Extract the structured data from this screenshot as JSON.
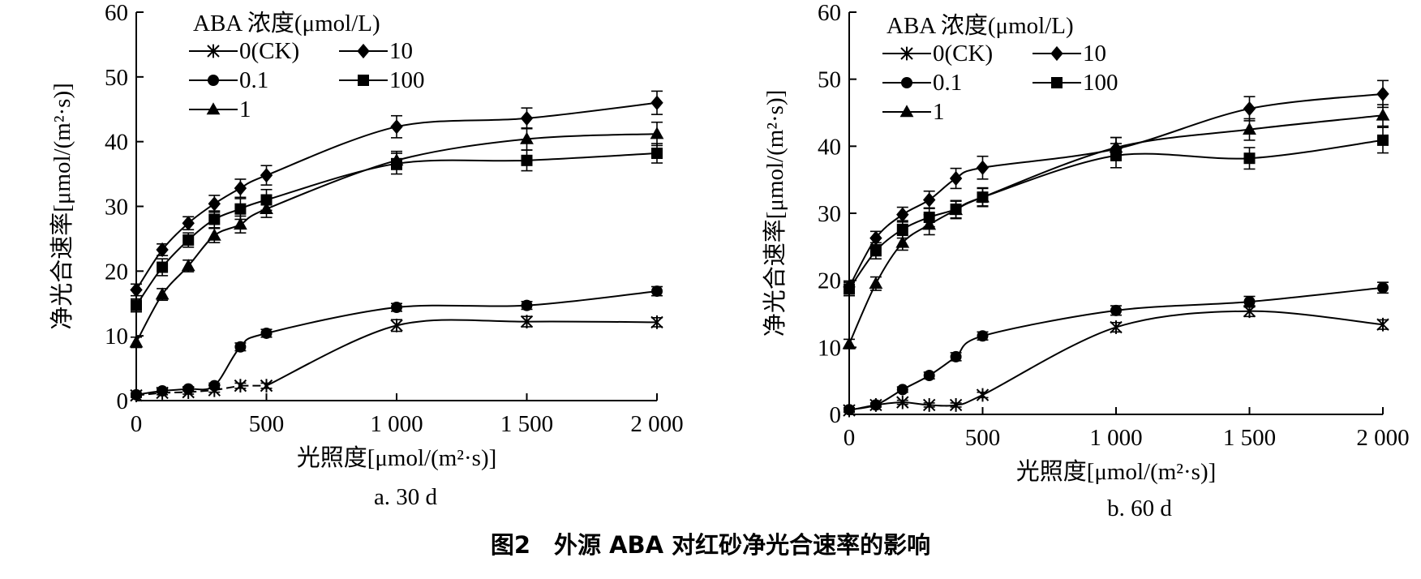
{
  "figure_caption": "图2　外源 ABA 对红砂净光合速率的影响",
  "chart_data": [
    {
      "type": "line",
      "caption": "a. 30 d",
      "xlabel": "光照度[μmol/(m²·s)]",
      "ylabel": "净光合速率[μmol/(m²·s)]",
      "xlim": [
        0,
        2000
      ],
      "ylim": [
        0,
        60
      ],
      "xticks": [
        0,
        500,
        1000,
        1500,
        2000
      ],
      "xtick_labels": [
        "0",
        "500",
        "1 000",
        "1 500",
        "2 000"
      ],
      "yticks": [
        0,
        10,
        20,
        30,
        40,
        50,
        60
      ],
      "ytick_labels": [
        "0",
        "10",
        "20",
        "30",
        "40",
        "50",
        "60"
      ],
      "grid": false,
      "legend_title": "ABA 浓度(μmol/L)",
      "legend_position": "top-left",
      "x": [
        0,
        100,
        200,
        300,
        400,
        500,
        1000,
        1500,
        2000
      ],
      "series": [
        {
          "name": "0(CK)",
          "marker": "asterisk",
          "dashed_segments": [
            0,
            1,
            2,
            3,
            4
          ],
          "values": [
            0.8,
            1.2,
            1.3,
            1.6,
            2.3,
            2.3,
            11.6,
            12.2,
            12.1
          ],
          "errors": [
            0.3,
            0.3,
            0.3,
            0.3,
            0.4,
            0.4,
            0.9,
            0.8,
            0.7
          ]
        },
        {
          "name": "0.1",
          "marker": "circle",
          "values": [
            0.9,
            1.5,
            1.8,
            2.3,
            8.3,
            10.4,
            14.4,
            14.7,
            16.9
          ],
          "errors": [
            0.3,
            0.3,
            0.3,
            0.4,
            0.6,
            0.6,
            0.6,
            0.6,
            0.7
          ]
        },
        {
          "name": "1",
          "marker": "triangle",
          "values": [
            9.0,
            16.4,
            20.8,
            25.5,
            27.2,
            29.6,
            37.1,
            40.4,
            41.2
          ],
          "errors": [
            0.8,
            0.9,
            0.9,
            1.1,
            1.3,
            1.3,
            1.4,
            1.7,
            1.8
          ]
        },
        {
          "name": "10",
          "marker": "diamond",
          "values": [
            17.1,
            23.3,
            27.4,
            30.4,
            32.8,
            34.8,
            42.3,
            43.6,
            46.0
          ],
          "errors": [
            0.9,
            0.9,
            1.0,
            1.3,
            1.4,
            1.5,
            1.7,
            1.6,
            1.8
          ]
        },
        {
          "name": "100",
          "marker": "square",
          "values": [
            14.7,
            20.6,
            24.8,
            28.0,
            29.6,
            31.0,
            36.6,
            37.1,
            38.2
          ],
          "errors": [
            1.0,
            1.3,
            1.1,
            1.3,
            1.6,
            1.6,
            1.6,
            1.6,
            1.5
          ]
        }
      ]
    },
    {
      "type": "line",
      "caption": "b. 60 d",
      "xlabel": "光照度[μmol/(m²·s)]",
      "ylabel": "净光合速率[μmol/(m²·s)]",
      "xlim": [
        0,
        2000
      ],
      "ylim": [
        0,
        60
      ],
      "xticks": [
        0,
        500,
        1000,
        1500,
        2000
      ],
      "xtick_labels": [
        "0",
        "500",
        "1 000",
        "1 500",
        "2 000"
      ],
      "yticks": [
        0,
        10,
        20,
        30,
        40,
        50,
        60
      ],
      "ytick_labels": [
        "0",
        "10",
        "20",
        "30",
        "40",
        "50",
        "60"
      ],
      "grid": false,
      "legend_title": "ABA 浓度(μmol/L)",
      "legend_position": "top-left",
      "x": [
        0,
        100,
        200,
        300,
        400,
        500,
        1000,
        1500,
        2000
      ],
      "series": [
        {
          "name": "0(CK)",
          "marker": "asterisk",
          "dashed_segments": [],
          "values": [
            0.6,
            1.4,
            1.8,
            1.4,
            1.4,
            2.9,
            13.0,
            15.4,
            13.4
          ],
          "errors": [
            0.3,
            0.3,
            0.3,
            0.3,
            0.3,
            0.4,
            0.7,
            0.8,
            0.7
          ]
        },
        {
          "name": "0.1",
          "marker": "circle",
          "values": [
            0.7,
            1.4,
            3.7,
            5.8,
            8.6,
            11.7,
            15.5,
            16.8,
            18.9
          ],
          "errors": [
            0.3,
            0.3,
            0.4,
            0.5,
            0.6,
            0.6,
            0.7,
            0.8,
            0.8
          ]
        },
        {
          "name": "1",
          "marker": "triangle",
          "values": [
            10.5,
            19.5,
            25.6,
            28.3,
            30.5,
            32.4,
            39.8,
            42.5,
            44.6
          ],
          "errors": [
            0.7,
            1.0,
            1.1,
            1.5,
            1.3,
            1.3,
            1.5,
            1.6,
            1.6
          ]
        },
        {
          "name": "10",
          "marker": "diamond",
          "values": [
            19.0,
            26.3,
            29.8,
            32.0,
            35.2,
            36.8,
            39.6,
            45.6,
            47.8
          ],
          "errors": [
            0.9,
            1.0,
            1.1,
            1.3,
            1.5,
            1.7,
            1.7,
            1.8,
            2.0
          ]
        },
        {
          "name": "100",
          "marker": "square",
          "values": [
            18.7,
            24.4,
            27.6,
            29.4,
            30.6,
            32.4,
            38.6,
            38.2,
            40.9
          ],
          "errors": [
            1.0,
            1.2,
            1.3,
            1.4,
            1.3,
            1.4,
            1.8,
            1.6,
            1.9
          ]
        }
      ]
    }
  ]
}
